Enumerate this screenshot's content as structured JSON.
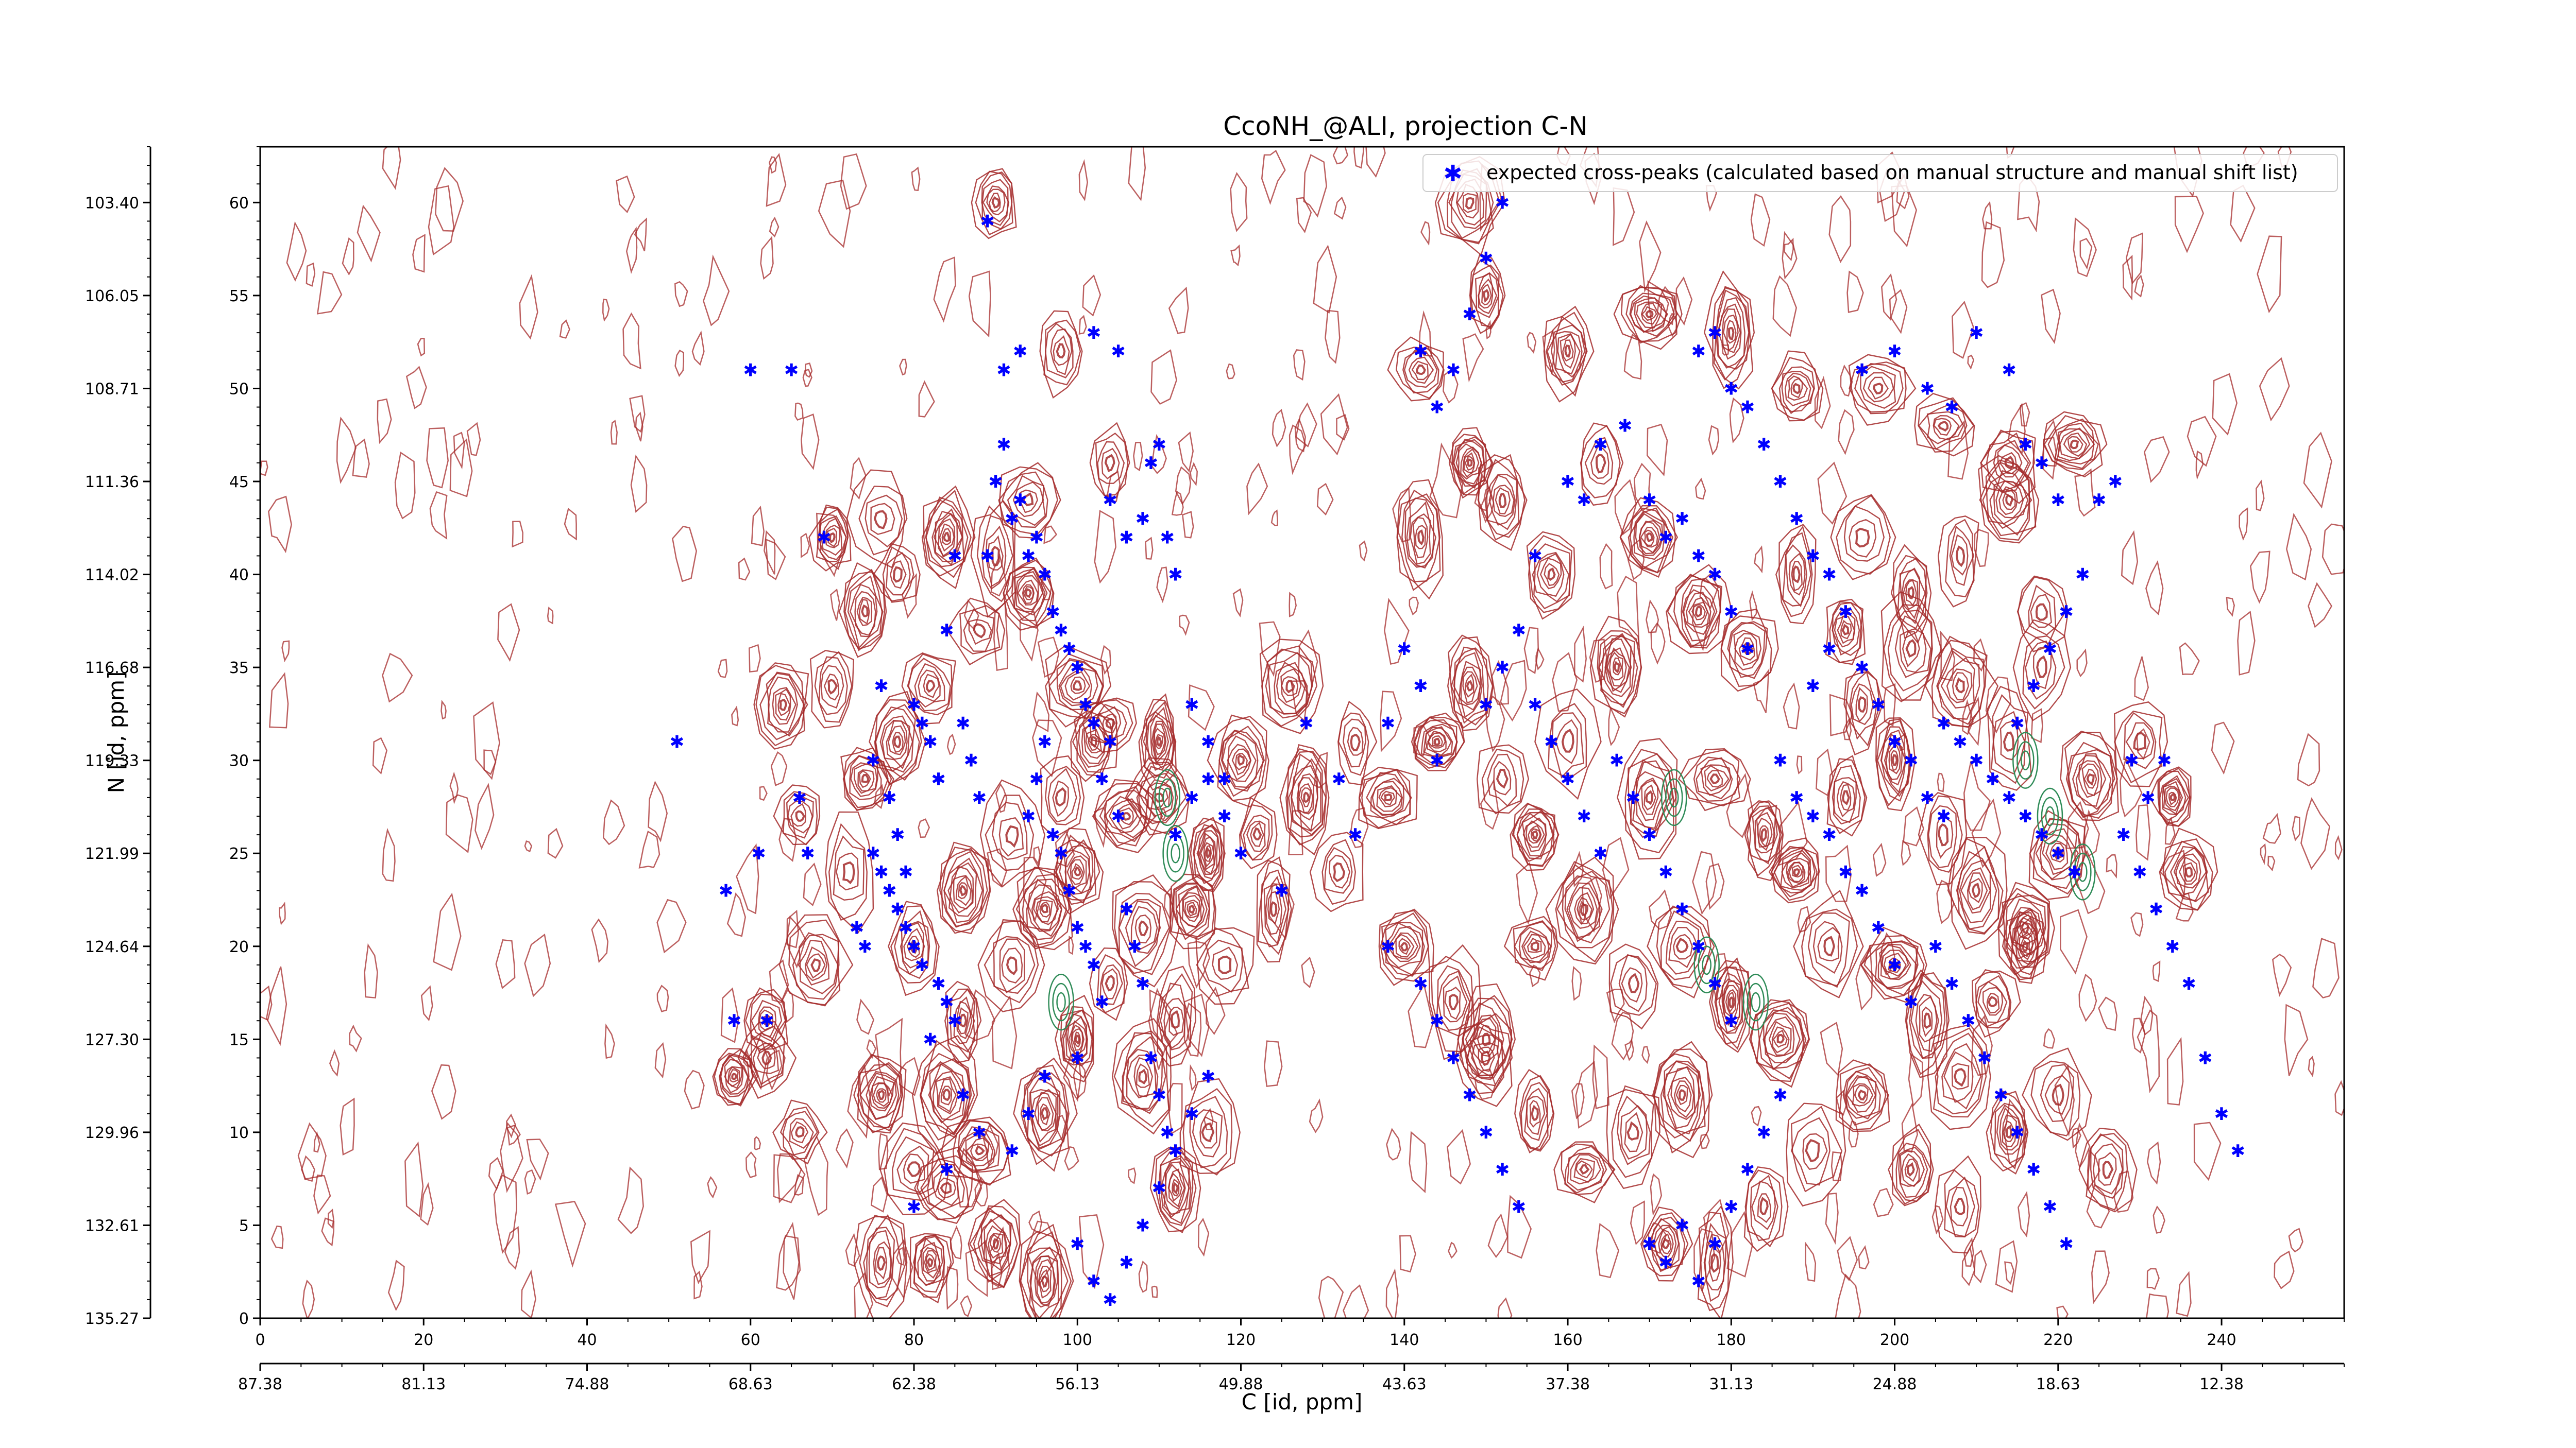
{
  "colors": {
    "contour": "#a52a2a",
    "negative_contour": "#2e8b57",
    "peak": "#0000ff",
    "axis": "#000000"
  },
  "chart_data": {
    "type": "scatter",
    "title": "CcoNH_@ALI, projection C-N",
    "xlabel": "C [id, ppm]",
    "ylabel": "N [id, ppm]",
    "legend": {
      "location": "top-right",
      "label": "expected cross-peaks (calculated based on manual structure and manual shift list)"
    },
    "x_index_range": [
      0,
      255
    ],
    "y_index_range": [
      0,
      63
    ],
    "x_index_ticks": [
      "0",
      "20",
      "40",
      "60",
      "80",
      "100",
      "120",
      "140",
      "160",
      "180",
      "200",
      "220",
      "240"
    ],
    "y_index_ticks": [
      "0",
      "5",
      "10",
      "15",
      "20",
      "25",
      "30",
      "35",
      "40",
      "45",
      "50",
      "55",
      "60"
    ],
    "x_ppm_ticks": [
      "87.38",
      "81.13",
      "74.88",
      "68.63",
      "62.38",
      "56.13",
      "49.88",
      "43.63",
      "37.38",
      "31.13",
      "24.88",
      "18.63",
      "12.38"
    ],
    "y_ppm_ticks": [
      "135.27",
      "132.61",
      "129.96",
      "127.30",
      "124.64",
      "121.99",
      "119.33",
      "116.68",
      "114.02",
      "111.36",
      "108.71",
      "106.05",
      "103.40"
    ],
    "contour_peaks": [
      [
        58,
        13
      ],
      [
        62,
        14
      ],
      [
        66,
        10
      ],
      [
        76,
        3
      ],
      [
        84,
        7
      ],
      [
        90,
        4
      ],
      [
        96,
        2
      ],
      [
        80,
        20
      ],
      [
        86,
        23
      ],
      [
        92,
        26
      ],
      [
        98,
        28
      ],
      [
        102,
        31
      ],
      [
        74,
        29
      ],
      [
        78,
        31
      ],
      [
        82,
        34
      ],
      [
        88,
        37
      ],
      [
        94,
        39
      ],
      [
        100,
        34
      ],
      [
        104,
        32
      ],
      [
        110,
        28
      ],
      [
        116,
        25
      ],
      [
        120,
        30
      ],
      [
        126,
        34
      ],
      [
        72,
        24
      ],
      [
        68,
        19
      ],
      [
        62,
        16
      ],
      [
        64,
        33
      ],
      [
        66,
        27
      ],
      [
        70,
        42
      ],
      [
        76,
        43
      ],
      [
        84,
        42
      ],
      [
        90,
        41
      ],
      [
        94,
        44
      ],
      [
        98,
        52
      ],
      [
        104,
        46
      ],
      [
        90,
        60
      ],
      [
        108,
        13
      ],
      [
        112,
        16
      ],
      [
        116,
        10
      ],
      [
        96,
        11
      ],
      [
        100,
        15
      ],
      [
        104,
        18
      ],
      [
        108,
        21
      ],
      [
        114,
        22
      ],
      [
        118,
        19
      ],
      [
        112,
        7
      ],
      [
        84,
        12
      ],
      [
        88,
        9
      ],
      [
        80,
        8
      ],
      [
        76,
        12
      ],
      [
        82,
        3
      ],
      [
        86,
        16
      ],
      [
        92,
        19
      ],
      [
        96,
        22
      ],
      [
        100,
        24
      ],
      [
        106,
        27
      ],
      [
        110,
        31
      ],
      [
        124,
        22
      ],
      [
        132,
        24
      ],
      [
        138,
        28
      ],
      [
        144,
        31
      ],
      [
        148,
        34
      ],
      [
        152,
        29
      ],
      [
        156,
        26
      ],
      [
        160,
        31
      ],
      [
        166,
        35
      ],
      [
        170,
        28
      ],
      [
        140,
        20
      ],
      [
        146,
        17
      ],
      [
        150,
        15
      ],
      [
        156,
        20
      ],
      [
        162,
        22
      ],
      [
        168,
        18
      ],
      [
        174,
        20
      ],
      [
        180,
        17
      ],
      [
        186,
        15
      ],
      [
        192,
        20
      ],
      [
        142,
        42
      ],
      [
        148,
        46
      ],
      [
        152,
        44
      ],
      [
        158,
        40
      ],
      [
        164,
        46
      ],
      [
        170,
        42
      ],
      [
        176,
        38
      ],
      [
        182,
        36
      ],
      [
        188,
        40
      ],
      [
        194,
        37
      ],
      [
        142,
        51
      ],
      [
        150,
        55
      ],
      [
        160,
        52
      ],
      [
        170,
        54
      ],
      [
        180,
        53
      ],
      [
        188,
        50
      ],
      [
        198,
        50
      ],
      [
        206,
        48
      ],
      [
        214,
        46
      ],
      [
        222,
        47
      ],
      [
        148,
        60
      ],
      [
        172,
        4
      ],
      [
        178,
        3
      ],
      [
        184,
        6
      ],
      [
        190,
        9
      ],
      [
        196,
        12
      ],
      [
        202,
        8
      ],
      [
        208,
        6
      ],
      [
        214,
        10
      ],
      [
        220,
        12
      ],
      [
        226,
        8
      ],
      [
        178,
        29
      ],
      [
        184,
        26
      ],
      [
        188,
        24
      ],
      [
        194,
        28
      ],
      [
        200,
        30
      ],
      [
        206,
        26
      ],
      [
        210,
        23
      ],
      [
        216,
        21
      ],
      [
        220,
        25
      ],
      [
        224,
        29
      ],
      [
        200,
        19
      ],
      [
        204,
        16
      ],
      [
        208,
        13
      ],
      [
        212,
        17
      ],
      [
        216,
        20
      ],
      [
        196,
        33
      ],
      [
        202,
        36
      ],
      [
        208,
        34
      ],
      [
        214,
        31
      ],
      [
        218,
        35
      ],
      [
        174,
        12
      ],
      [
        168,
        10
      ],
      [
        162,
        8
      ],
      [
        156,
        11
      ],
      [
        150,
        14
      ],
      [
        196,
        42
      ],
      [
        202,
        39
      ],
      [
        208,
        41
      ],
      [
        214,
        44
      ],
      [
        218,
        38
      ],
      [
        128,
        28
      ],
      [
        134,
        31
      ],
      [
        122,
        26
      ],
      [
        230,
        31
      ],
      [
        234,
        28
      ],
      [
        236,
        24
      ],
      [
        70,
        34
      ],
      [
        74,
        38
      ],
      [
        78,
        40
      ]
    ],
    "expected_peaks": [
      [
        51,
        31
      ],
      [
        57,
        23
      ],
      [
        60,
        51
      ],
      [
        61,
        25
      ],
      [
        65,
        51
      ],
      [
        66,
        28
      ],
      [
        67,
        25
      ],
      [
        69,
        42
      ],
      [
        62,
        16
      ],
      [
        58,
        16
      ],
      [
        73,
        21
      ],
      [
        74,
        20
      ],
      [
        75,
        30
      ],
      [
        76,
        34
      ],
      [
        77,
        28
      ],
      [
        78,
        26
      ],
      [
        79,
        24
      ],
      [
        80,
        33
      ],
      [
        81,
        32
      ],
      [
        82,
        31
      ],
      [
        83,
        29
      ],
      [
        84,
        37
      ],
      [
        75,
        25
      ],
      [
        76,
        24
      ],
      [
        77,
        23
      ],
      [
        78,
        22
      ],
      [
        79,
        21
      ],
      [
        80,
        20
      ],
      [
        81,
        19
      ],
      [
        82,
        15
      ],
      [
        83,
        18
      ],
      [
        84,
        17
      ],
      [
        85,
        16
      ],
      [
        85,
        41
      ],
      [
        86,
        32
      ],
      [
        87,
        30
      ],
      [
        88,
        28
      ],
      [
        89,
        41
      ],
      [
        89,
        59
      ],
      [
        90,
        45
      ],
      [
        91,
        47
      ],
      [
        92,
        43
      ],
      [
        93,
        44
      ],
      [
        94,
        41
      ],
      [
        91,
        51
      ],
      [
        93,
        52
      ],
      [
        95,
        42
      ],
      [
        96,
        40
      ],
      [
        97,
        38
      ],
      [
        98,
        37
      ],
      [
        99,
        36
      ],
      [
        100,
        35
      ],
      [
        101,
        33
      ],
      [
        102,
        32
      ],
      [
        94,
        27
      ],
      [
        95,
        29
      ],
      [
        96,
        31
      ],
      [
        97,
        26
      ],
      [
        98,
        25
      ],
      [
        99,
        23
      ],
      [
        100,
        21
      ],
      [
        101,
        20
      ],
      [
        102,
        19
      ],
      [
        103,
        17
      ],
      [
        102,
        53
      ],
      [
        105,
        52
      ],
      [
        104,
        44
      ],
      [
        106,
        42
      ],
      [
        108,
        43
      ],
      [
        109,
        46
      ],
      [
        110,
        47
      ],
      [
        111,
        42
      ],
      [
        112,
        40
      ],
      [
        103,
        29
      ],
      [
        104,
        31
      ],
      [
        105,
        27
      ],
      [
        106,
        22
      ],
      [
        107,
        20
      ],
      [
        108,
        18
      ],
      [
        109,
        14
      ],
      [
        110,
        12
      ],
      [
        111,
        10
      ],
      [
        100,
        4
      ],
      [
        102,
        2
      ],
      [
        104,
        1
      ],
      [
        106,
        3
      ],
      [
        108,
        5
      ],
      [
        110,
        7
      ],
      [
        112,
        9
      ],
      [
        114,
        11
      ],
      [
        116,
        13
      ],
      [
        112,
        26
      ],
      [
        114,
        28
      ],
      [
        116,
        29
      ],
      [
        118,
        27
      ],
      [
        120,
        25
      ],
      [
        114,
        33
      ],
      [
        116,
        31
      ],
      [
        118,
        29
      ],
      [
        80,
        6
      ],
      [
        84,
        8
      ],
      [
        86,
        12
      ],
      [
        88,
        10
      ],
      [
        92,
        9
      ],
      [
        94,
        11
      ],
      [
        96,
        13
      ],
      [
        100,
        14
      ],
      [
        125,
        23
      ],
      [
        128,
        32
      ],
      [
        132,
        29
      ],
      [
        134,
        26
      ],
      [
        138,
        32
      ],
      [
        140,
        36
      ],
      [
        142,
        34
      ],
      [
        144,
        30
      ],
      [
        138,
        20
      ],
      [
        142,
        18
      ],
      [
        144,
        16
      ],
      [
        146,
        14
      ],
      [
        148,
        12
      ],
      [
        150,
        10
      ],
      [
        152,
        8
      ],
      [
        154,
        6
      ],
      [
        142,
        52
      ],
      [
        144,
        49
      ],
      [
        146,
        51
      ],
      [
        148,
        54
      ],
      [
        150,
        57
      ],
      [
        152,
        60
      ],
      [
        156,
        41
      ],
      [
        160,
        45
      ],
      [
        162,
        44
      ],
      [
        150,
        33
      ],
      [
        152,
        35
      ],
      [
        154,
        37
      ],
      [
        156,
        33
      ],
      [
        158,
        31
      ],
      [
        160,
        29
      ],
      [
        162,
        27
      ],
      [
        164,
        25
      ],
      [
        166,
        30
      ],
      [
        168,
        28
      ],
      [
        170,
        26
      ],
      [
        172,
        24
      ],
      [
        174,
        22
      ],
      [
        176,
        20
      ],
      [
        178,
        18
      ],
      [
        180,
        16
      ],
      [
        164,
        47
      ],
      [
        167,
        48
      ],
      [
        170,
        44
      ],
      [
        172,
        42
      ],
      [
        174,
        43
      ],
      [
        176,
        41
      ],
      [
        178,
        40
      ],
      [
        180,
        38
      ],
      [
        182,
        36
      ],
      [
        176,
        52
      ],
      [
        178,
        53
      ],
      [
        180,
        50
      ],
      [
        182,
        49
      ],
      [
        184,
        47
      ],
      [
        186,
        45
      ],
      [
        188,
        43
      ],
      [
        190,
        41
      ],
      [
        192,
        40
      ],
      [
        170,
        4
      ],
      [
        172,
        3
      ],
      [
        174,
        5
      ],
      [
        176,
        2
      ],
      [
        178,
        4
      ],
      [
        180,
        6
      ],
      [
        182,
        8
      ],
      [
        184,
        10
      ],
      [
        186,
        12
      ],
      [
        186,
        30
      ],
      [
        188,
        28
      ],
      [
        190,
        27
      ],
      [
        192,
        26
      ],
      [
        194,
        24
      ],
      [
        196,
        23
      ],
      [
        198,
        21
      ],
      [
        200,
        19
      ],
      [
        202,
        17
      ],
      [
        190,
        34
      ],
      [
        192,
        36
      ],
      [
        194,
        38
      ],
      [
        196,
        35
      ],
      [
        198,
        33
      ],
      [
        200,
        31
      ],
      [
        202,
        30
      ],
      [
        204,
        28
      ],
      [
        206,
        27
      ],
      [
        196,
        51
      ],
      [
        200,
        52
      ],
      [
        204,
        50
      ],
      [
        207,
        49
      ],
      [
        210,
        53
      ],
      [
        214,
        51
      ],
      [
        216,
        47
      ],
      [
        218,
        46
      ],
      [
        220,
        44
      ],
      [
        206,
        32
      ],
      [
        208,
        31
      ],
      [
        210,
        30
      ],
      [
        212,
        29
      ],
      [
        214,
        28
      ],
      [
        216,
        27
      ],
      [
        218,
        26
      ],
      [
        220,
        25
      ],
      [
        222,
        24
      ],
      [
        205,
        20
      ],
      [
        207,
        18
      ],
      [
        209,
        16
      ],
      [
        211,
        14
      ],
      [
        213,
        12
      ],
      [
        215,
        10
      ],
      [
        217,
        8
      ],
      [
        219,
        6
      ],
      [
        221,
        4
      ],
      [
        215,
        32
      ],
      [
        217,
        34
      ],
      [
        219,
        36
      ],
      [
        221,
        38
      ],
      [
        223,
        40
      ],
      [
        225,
        44
      ],
      [
        227,
        45
      ],
      [
        229,
        30
      ],
      [
        231,
        28
      ],
      [
        228,
        26
      ],
      [
        230,
        24
      ],
      [
        232,
        22
      ],
      [
        234,
        20
      ],
      [
        236,
        18
      ],
      [
        238,
        14
      ],
      [
        240,
        11
      ],
      [
        242,
        9
      ],
      [
        233,
        30
      ]
    ]
  }
}
